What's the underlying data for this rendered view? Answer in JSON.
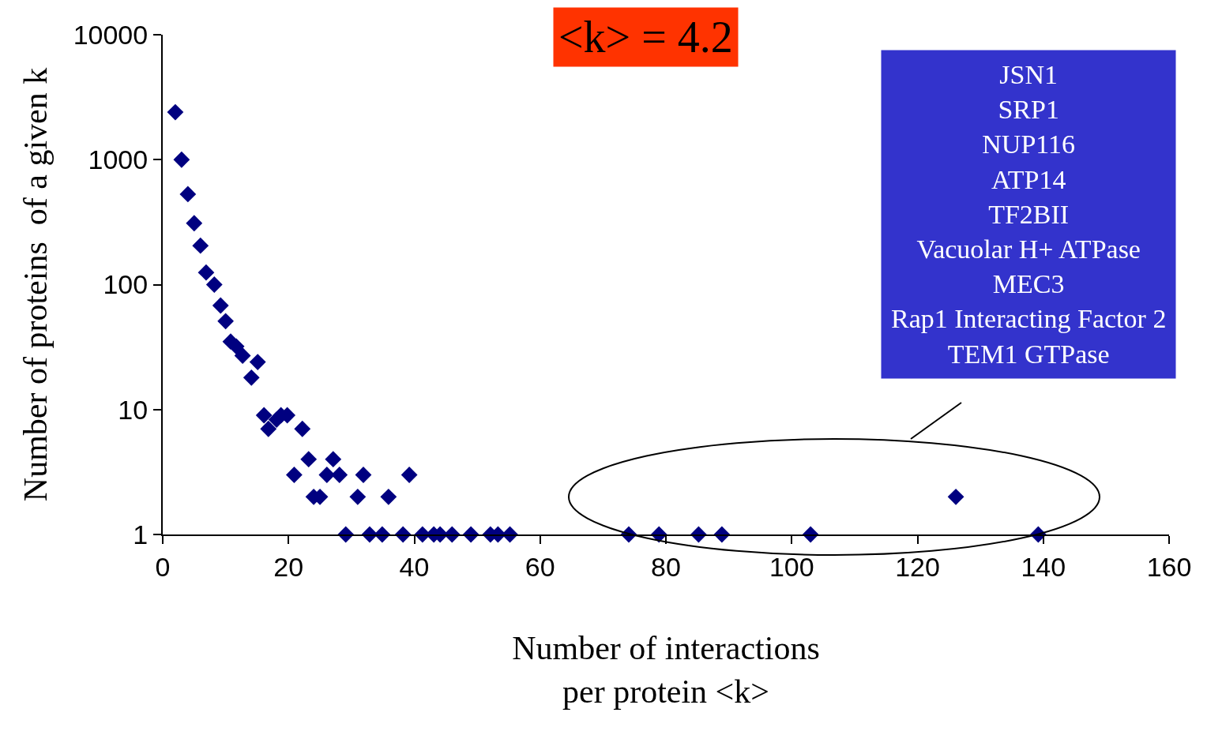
{
  "chart_data": {
    "type": "scatter",
    "xlabel": "Number of interactions\nper protein <k>",
    "ylabel": "Number of proteins  of a given k",
    "annotations": [
      "<k> = 4.2",
      "JSN1\nSRP1\nNUP116\nATP14\nTF2BII\nVacuolar H+ ATPase\nMEC3\nRap1 Interacting Factor 2\nTEM1 GTPase"
    ],
    "x": [
      2.0,
      3.0,
      4.0,
      5.0,
      6.0,
      6.9,
      8.2,
      9.2,
      10.0,
      10.8,
      11.7,
      12.7,
      14.1,
      15.1,
      16.1,
      16.8,
      17.5,
      18.1,
      18.8,
      19.8,
      22.2,
      23.2,
      20.9,
      24.0,
      25.0,
      26.1,
      27.1,
      28.1,
      31.0,
      31.9,
      35.9,
      39.2,
      29.1,
      32.9,
      34.9,
      38.2,
      41.3,
      43.1,
      44.1,
      46.0,
      49.0,
      52.1,
      53.3,
      55.2,
      74.1,
      78.9,
      85.2,
      88.9,
      103.0,
      139.2,
      126.1
    ],
    "values": [
      2400,
      1000,
      530,
      310,
      205,
      125,
      100,
      68,
      51,
      35,
      32,
      27,
      18,
      24,
      9,
      7,
      null,
      8.3,
      9,
      9,
      7,
      4,
      3,
      2,
      2,
      3,
      4,
      3,
      2,
      3,
      2,
      3,
      1,
      1,
      1,
      1,
      1,
      1,
      1,
      1,
      1,
      1,
      1,
      1,
      1,
      1,
      1,
      1,
      1,
      1,
      2
    ],
    "color": "#000080",
    "marker": "diamond",
    "log": "y",
    "legend": false,
    "xlim": [
      0,
      160
    ],
    "xticks": [
      0,
      20,
      40,
      60,
      80,
      100,
      120,
      140,
      160
    ],
    "ylim": [
      1,
      10000
    ],
    "yticks": [
      1,
      10,
      100,
      1000,
      10000
    ]
  }
}
